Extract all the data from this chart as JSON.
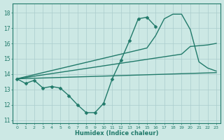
{
  "background_color": "#cce8e4",
  "grid_color": "#aacccc",
  "line_color": "#217a6a",
  "marker_color": "#217a6a",
  "xlabel": "Humidex (Indice chaleur)",
  "xlim": [
    -0.5,
    23.5
  ],
  "ylim": [
    10.8,
    18.6
  ],
  "yticks": [
    11,
    12,
    13,
    14,
    15,
    16,
    17,
    18
  ],
  "xticks": [
    0,
    1,
    2,
    3,
    4,
    5,
    6,
    7,
    8,
    9,
    10,
    11,
    12,
    13,
    14,
    15,
    16,
    17,
    18,
    19,
    20,
    21,
    22,
    23
  ],
  "series": [
    {
      "x": [
        0,
        1,
        2,
        3,
        4,
        5,
        6,
        7,
        8,
        9,
        10,
        11,
        12,
        13,
        14,
        15,
        16
      ],
      "y": [
        13.7,
        13.4,
        13.6,
        13.1,
        13.2,
        13.1,
        12.6,
        12.0,
        11.5,
        11.5,
        12.1,
        13.7,
        14.9,
        16.2,
        17.6,
        17.7,
        17.1
      ],
      "marker": "D",
      "markersize": 2.5,
      "linewidth": 1.0
    },
    {
      "x": [
        0,
        23
      ],
      "y": [
        13.7,
        14.1
      ],
      "marker": null,
      "markersize": 0,
      "linewidth": 1.0
    },
    {
      "x": [
        0,
        19,
        20,
        22,
        23
      ],
      "y": [
        13.7,
        15.3,
        15.8,
        15.9,
        16.0
      ],
      "marker": null,
      "markersize": 0,
      "linewidth": 1.0
    },
    {
      "x": [
        0,
        15,
        16,
        17,
        18,
        19,
        20,
        21,
        22,
        23
      ],
      "y": [
        13.7,
        15.7,
        16.5,
        17.6,
        17.9,
        17.9,
        16.9,
        14.8,
        14.4,
        14.2
      ],
      "marker": null,
      "markersize": 0,
      "linewidth": 1.0
    }
  ]
}
